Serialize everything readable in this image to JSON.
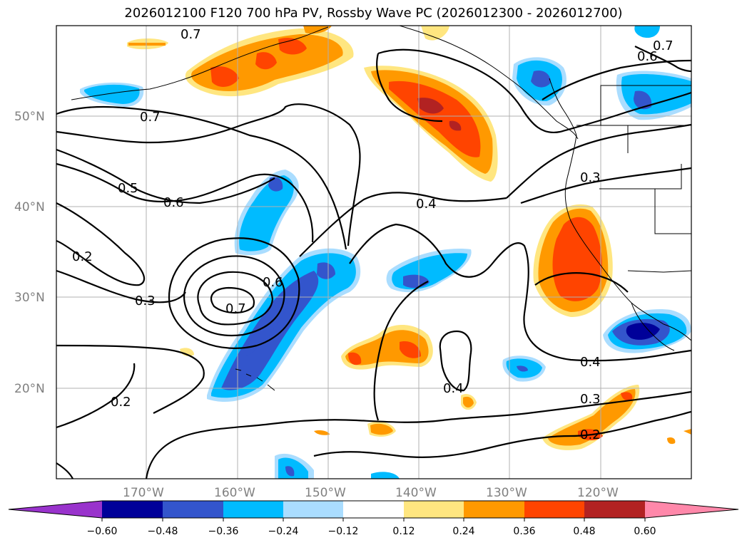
{
  "title": "2026012100 F120 700 hPa PV, Rossby Wave PC (2026012300 - 2026012700)",
  "latitude_labels": [
    "50°N",
    "40°N",
    "30°N",
    "20°N"
  ],
  "longitude_labels": [
    "170°W",
    "160°W",
    "150°W",
    "140°W",
    "130°W",
    "120°W"
  ],
  "contour_labels": [
    "0.7",
    "0.6",
    "0.7",
    "0.5",
    "0.6",
    "0.2",
    "0.3",
    "0.6",
    "0.7",
    "0.4",
    "0.3",
    "0.4",
    "0.4",
    "0.3",
    "0.2",
    "0.2"
  ],
  "colorbar": {
    "tick_labels": [
      "−0.60",
      "−0.48",
      "−0.36",
      "−0.24",
      "−0.12",
      "0.12",
      "0.24",
      "0.36",
      "0.48",
      "0.60"
    ],
    "colors": [
      "#9933cc",
      "#000099",
      "#3355cc",
      "#00bbff",
      "#aaddff",
      "#ffffff",
      "#ffe680",
      "#ff9900",
      "#ff4400",
      "#b22222",
      "#ff88aa"
    ]
  },
  "palette": {
    "deep_blue": "#000099",
    "blue": "#3355cc",
    "cyan": "#00bbff",
    "light_blue": "#aaddff",
    "light_yellow": "#ffe680",
    "orange": "#ff9900",
    "red_orange": "#ff4400",
    "dark_red": "#b22222"
  }
}
